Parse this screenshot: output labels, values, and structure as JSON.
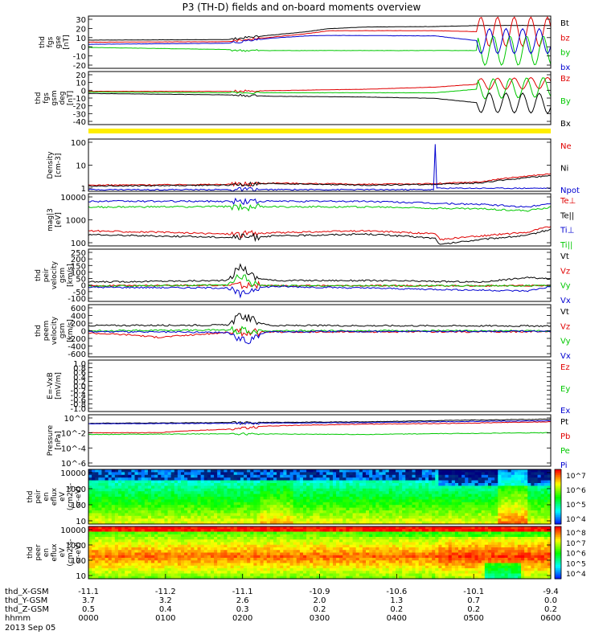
{
  "title": "P3 (TH-D) fields and on-board moments overview",
  "colors": {
    "black": "#000000",
    "red": "#e00000",
    "green": "#00c800",
    "blue": "#0000d0",
    "yellow": "#ffee00"
  },
  "chart_data": [
    {
      "type": "line",
      "id": "fgs_gse",
      "ylabel": [
        "thd",
        "fgs",
        "gse",
        "[nT]"
      ],
      "ylim": [
        -20,
        30
      ],
      "yticks": [
        "30",
        "20",
        "10",
        "0",
        "-10",
        "-20"
      ],
      "legend": [
        {
          "name": "Bt",
          "color": "black"
        },
        {
          "name": "bz",
          "color": "red"
        },
        {
          "name": "by",
          "color": "green"
        },
        {
          "name": "bx",
          "color": "blue"
        }
      ],
      "series": [
        {
          "name": "Bt",
          "color": "black",
          "x": [
            0,
            0.3,
            0.4,
            0.47,
            0.52,
            0.6,
            0.75,
            0.85,
            1.0
          ],
          "y": [
            7,
            7.5,
            12,
            15,
            18,
            19.5,
            20,
            21,
            21
          ]
        },
        {
          "name": "bz",
          "color": "red",
          "x": [
            0,
            0.3,
            0.4,
            0.47,
            0.52,
            0.75,
            0.85,
            1.0
          ],
          "y": [
            5,
            5.5,
            10,
            13,
            16,
            16,
            15,
            15
          ],
          "osc": {
            "start": 0.84,
            "period": 0.036,
            "amp": 14
          }
        },
        {
          "name": "by",
          "color": "green",
          "x": [
            0,
            0.3,
            0.33,
            0.4,
            0.75,
            0.85,
            1.0
          ],
          "y": [
            0,
            -2,
            -3,
            -3,
            -3,
            -3,
            -3
          ],
          "osc": {
            "start": 0.84,
            "period": 0.036,
            "amp": 14,
            "phase": 1.6
          }
        },
        {
          "name": "bx",
          "color": "blue",
          "x": [
            0,
            0.3,
            0.4,
            0.47,
            0.52,
            0.75,
            0.85,
            1.0
          ],
          "y": [
            3,
            4,
            9,
            11,
            11.5,
            11,
            6,
            6
          ],
          "osc": {
            "start": 0.84,
            "period": 0.036,
            "amp": 12,
            "phase": 3.1
          }
        }
      ]
    },
    {
      "type": "line",
      "id": "fgs_gsm",
      "ylabel": [
        "thd",
        "fgs",
        "gsm",
        "deg",
        "[nT]"
      ],
      "ylim": [
        -45,
        30
      ],
      "yticks": [
        "20",
        "10",
        "0",
        "-10",
        "-20",
        "-30",
        "-40"
      ],
      "legend": [
        {
          "name": "Bz",
          "color": "red"
        },
        {
          "name": "By",
          "color": "green"
        },
        {
          "name": "Bx",
          "color": "black"
        }
      ],
      "series": [
        {
          "name": "Bz",
          "color": "red",
          "x": [
            0,
            0.3,
            0.4,
            0.6,
            0.75,
            0.84,
            1.0
          ],
          "y": [
            2,
            2,
            3,
            5,
            8,
            12,
            14
          ],
          "osc": {
            "start": 0.84,
            "period": 0.036,
            "amp": 8
          }
        },
        {
          "name": "By",
          "color": "green",
          "x": [
            0,
            0.3,
            0.75,
            0.84,
            1.0
          ],
          "y": [
            1,
            0,
            0,
            5,
            8
          ],
          "osc": {
            "start": 0.84,
            "period": 0.036,
            "amp": 14,
            "phase": 1.6
          }
        },
        {
          "name": "Bx",
          "color": "black",
          "x": [
            0,
            0.3,
            0.4,
            0.6,
            0.75,
            0.84,
            1.0
          ],
          "y": [
            -1,
            -3,
            -5,
            -6,
            -8,
            -14,
            -15
          ],
          "osc": {
            "start": 0.84,
            "period": 0.036,
            "amp": 14,
            "phase": 3.1
          }
        }
      ]
    },
    {
      "type": "line",
      "id": "density",
      "ylabel": [
        "Density",
        "[cm-3]"
      ],
      "yscale": "log",
      "ylim": [
        0.2,
        200
      ],
      "yticks": [
        "100",
        "10",
        "1"
      ],
      "legend": [
        {
          "name": "Ne",
          "color": "red"
        },
        {
          "name": "Ni",
          "color": "black"
        },
        {
          "name": "Npot",
          "color": "blue"
        }
      ],
      "series": [
        {
          "name": "Ne",
          "color": "red",
          "x": [
            0,
            0.3,
            0.4,
            0.6,
            0.75,
            0.85,
            0.95,
            1.0
          ],
          "y": [
            0.45,
            0.5,
            0.6,
            0.5,
            0.55,
            0.7,
            1.5,
            2
          ]
        },
        {
          "name": "Ni",
          "color": "black",
          "x": [
            0,
            0.3,
            0.4,
            0.6,
            0.75,
            0.85,
            0.95,
            1.0
          ],
          "y": [
            0.4,
            0.45,
            0.55,
            0.45,
            0.5,
            0.6,
            1.2,
            1.6
          ]
        },
        {
          "name": "Npot",
          "color": "blue",
          "x": [
            0,
            0.3,
            0.6,
            0.747,
            0.749,
            0.751,
            1.0
          ],
          "y": [
            0.25,
            0.25,
            0.25,
            0.25,
            200,
            0.3,
            0.3
          ]
        }
      ]
    },
    {
      "type": "line",
      "id": "temperature",
      "ylabel": [
        "mag|3",
        "[eV]"
      ],
      "yscale": "log",
      "ylim": [
        100,
        12000
      ],
      "yticks": [
        "10000",
        "1000",
        "100"
      ],
      "legend": [
        {
          "name": "Te⊥",
          "color": "red"
        },
        {
          "name": "Te||",
          "color": "black"
        },
        {
          "name": "Ti⊥",
          "color": "blue"
        },
        {
          "name": "Ti||",
          "color": "green"
        }
      ],
      "series": [
        {
          "name": "Ti⊥",
          "color": "blue",
          "x": [
            0,
            0.3,
            0.6,
            0.75,
            0.85,
            0.95,
            1.0
          ],
          "y": [
            6000,
            6000,
            6000,
            5000,
            4500,
            3500,
            5000
          ]
        },
        {
          "name": "Ti||",
          "color": "green",
          "x": [
            0,
            0.3,
            0.6,
            0.75,
            0.85,
            0.95,
            1.0
          ],
          "y": [
            3500,
            3700,
            3600,
            3200,
            3000,
            2500,
            3500
          ]
        },
        {
          "name": "Te⊥",
          "color": "red",
          "x": [
            0,
            0.15,
            0.3,
            0.45,
            0.6,
            0.75,
            0.76,
            0.85,
            0.95,
            1.0
          ],
          "y": [
            400,
            350,
            300,
            350,
            400,
            300,
            180,
            250,
            350,
            600
          ]
        },
        {
          "name": "Te||",
          "color": "black",
          "x": [
            0,
            0.15,
            0.3,
            0.45,
            0.6,
            0.75,
            0.76,
            0.85,
            0.95,
            1.0
          ],
          "y": [
            280,
            250,
            220,
            260,
            300,
            200,
            110,
            180,
            260,
            450
          ]
        }
      ]
    },
    {
      "type": "line",
      "id": "peir_velocity",
      "ylabel": [
        "thd",
        "peir",
        "velocity",
        "gsm",
        "[km/s]"
      ],
      "ylim": [
        -100,
        250
      ],
      "yticks": [
        "250",
        "200",
        "150",
        "100",
        "50",
        "0",
        "-50",
        "-100"
      ],
      "legend": [
        {
          "name": "Vt",
          "color": "black"
        },
        {
          "name": "Vz",
          "color": "red"
        },
        {
          "name": "Vy",
          "color": "green"
        },
        {
          "name": "Vx",
          "color": "blue"
        }
      ],
      "series": [
        {
          "name": "Vt",
          "color": "black",
          "x": [
            0,
            0.3,
            0.33,
            0.36,
            0.4,
            0.6,
            0.85,
            0.95,
            1.0
          ],
          "y": [
            30,
            40,
            140,
            60,
            40,
            40,
            30,
            60,
            50
          ]
        },
        {
          "name": "Vz",
          "color": "red",
          "x": [
            0,
            0.3,
            0.4,
            1.0
          ],
          "y": [
            5,
            8,
            5,
            5
          ]
        },
        {
          "name": "Vy",
          "color": "green",
          "x": [
            0,
            0.3,
            0.33,
            0.36,
            0.4,
            1.0
          ],
          "y": [
            0,
            10,
            80,
            10,
            5,
            5
          ]
        },
        {
          "name": "Vx",
          "color": "blue",
          "x": [
            0,
            0.3,
            0.33,
            0.36,
            0.4,
            0.95,
            1.0
          ],
          "y": [
            -5,
            -10,
            -60,
            -10,
            0,
            -30,
            0
          ]
        }
      ]
    },
    {
      "type": "line",
      "id": "peem_velocity",
      "ylabel": [
        "thd",
        "peem",
        "velocity",
        "gsm",
        "[km/s]"
      ],
      "ylim": [
        -600,
        600
      ],
      "yticks": [
        "600",
        "400",
        "200",
        "0",
        "-200",
        "-400",
        "-600"
      ],
      "legend": [
        {
          "name": "Vt",
          "color": "black"
        },
        {
          "name": "Vz",
          "color": "red"
        },
        {
          "name": "Vy",
          "color": "green"
        },
        {
          "name": "Vx",
          "color": "blue"
        }
      ],
      "series": [
        {
          "name": "Vt",
          "color": "black",
          "x": [
            0,
            0.3,
            0.33,
            0.38,
            0.4,
            1.0
          ],
          "y": [
            120,
            130,
            350,
            150,
            120,
            110
          ]
        },
        {
          "name": "Vz",
          "color": "red",
          "x": [
            0,
            0.1,
            0.15,
            0.3,
            0.4,
            1.0
          ],
          "y": [
            -50,
            -100,
            -150,
            -40,
            -30,
            -20
          ]
        },
        {
          "name": "Vy",
          "color": "green",
          "x": [
            0,
            0.3,
            0.4,
            1.0
          ],
          "y": [
            0,
            20,
            0,
            0
          ]
        },
        {
          "name": "Vx",
          "color": "blue",
          "x": [
            0,
            0.3,
            0.34,
            0.38,
            0.4,
            1.0
          ],
          "y": [
            -20,
            -40,
            -250,
            -40,
            -20,
            -10
          ]
        }
      ]
    },
    {
      "type": "line",
      "id": "efield",
      "ylabel": [
        "E=-VxB",
        "[mV/m]"
      ],
      "ylim": [
        -1,
        1
      ],
      "yticks": [
        "1.0",
        "0.8",
        "0.6",
        "0.4",
        "0.2",
        "0.0",
        "-0.2",
        "-0.4",
        "-0.6",
        "-0.8",
        "-1.0"
      ],
      "legend": [
        {
          "name": "Ez",
          "color": "red"
        },
        {
          "name": "Ey",
          "color": "green"
        },
        {
          "name": "Ex",
          "color": "blue"
        }
      ],
      "series": []
    },
    {
      "type": "line",
      "id": "pressure",
      "ylabel": [
        "Pressure",
        "[nPa]"
      ],
      "yscale": "log",
      "ylim": [
        1e-06,
        1
      ],
      "yticks": [
        "10^0",
        "10^-2",
        "10^-4",
        "10^-6"
      ],
      "legend": [
        {
          "name": "Pt",
          "color": "black"
        },
        {
          "name": "Pb",
          "color": "red"
        },
        {
          "name": "Pe",
          "color": "green"
        },
        {
          "name": "Pi",
          "color": "blue"
        }
      ],
      "series": [
        {
          "name": "Pt",
          "color": "black",
          "x": [
            0,
            0.3,
            0.6,
            1.0
          ],
          "y": [
            0.1,
            0.12,
            0.15,
            0.3
          ]
        },
        {
          "name": "Pi",
          "color": "blue",
          "x": [
            0,
            0.3,
            0.6,
            1.0
          ],
          "y": [
            0.09,
            0.1,
            0.12,
            0.2
          ]
        },
        {
          "name": "Pb",
          "color": "red",
          "x": [
            0,
            0.15,
            0.3,
            0.4,
            0.6,
            0.8,
            1.0
          ],
          "y": [
            0.008,
            0.008,
            0.02,
            0.05,
            0.08,
            0.1,
            0.15
          ]
        },
        {
          "name": "Pe",
          "color": "green",
          "x": [
            0,
            0.3,
            0.6,
            1.0
          ],
          "y": [
            0.005,
            0.006,
            0.005,
            0.008
          ]
        }
      ]
    },
    {
      "type": "heatmap",
      "id": "peir_spec",
      "ylabel": [
        "thd",
        "peir",
        "en",
        "eflux",
        "eV",
        "(cm2-s-",
        "sr-eV)"
      ],
      "yticks": [
        "10000",
        "1000",
        "100",
        "10"
      ],
      "colorbar_ticks": [
        "10^7",
        "10^6",
        "10^5",
        "10^4"
      ]
    },
    {
      "type": "heatmap",
      "id": "peer_spec",
      "ylabel": [
        "thd",
        "peer",
        "en",
        "eflux",
        "eV",
        "(cm2-s-",
        "sr-eV)"
      ],
      "yticks": [
        "10000",
        "1000",
        "100",
        "10"
      ],
      "colorbar_ticks": [
        "10^8",
        "10^7",
        "10^6",
        "10^5",
        "10^4"
      ]
    }
  ],
  "xaxis": {
    "rows": [
      {
        "label": "thd_X-GSM",
        "values": [
          "-11.1",
          "-11.2",
          "-11.1",
          "-10.9",
          "-10.6",
          "-10.1",
          "-9.4"
        ]
      },
      {
        "label": "thd_Y-GSM",
        "values": [
          "3.7",
          "3.2",
          "2.6",
          "2.0",
          "1.3",
          "0.7",
          "0.0"
        ]
      },
      {
        "label": "thd_Z-GSM",
        "values": [
          "0.5",
          "0.4",
          "0.3",
          "0.2",
          "0.2",
          "0.2",
          "0.2"
        ]
      },
      {
        "label": "hhmm",
        "values": [
          "0000",
          "0100",
          "0200",
          "0300",
          "0400",
          "0500",
          "0600"
        ]
      }
    ],
    "date": "2013 Sep 05"
  }
}
